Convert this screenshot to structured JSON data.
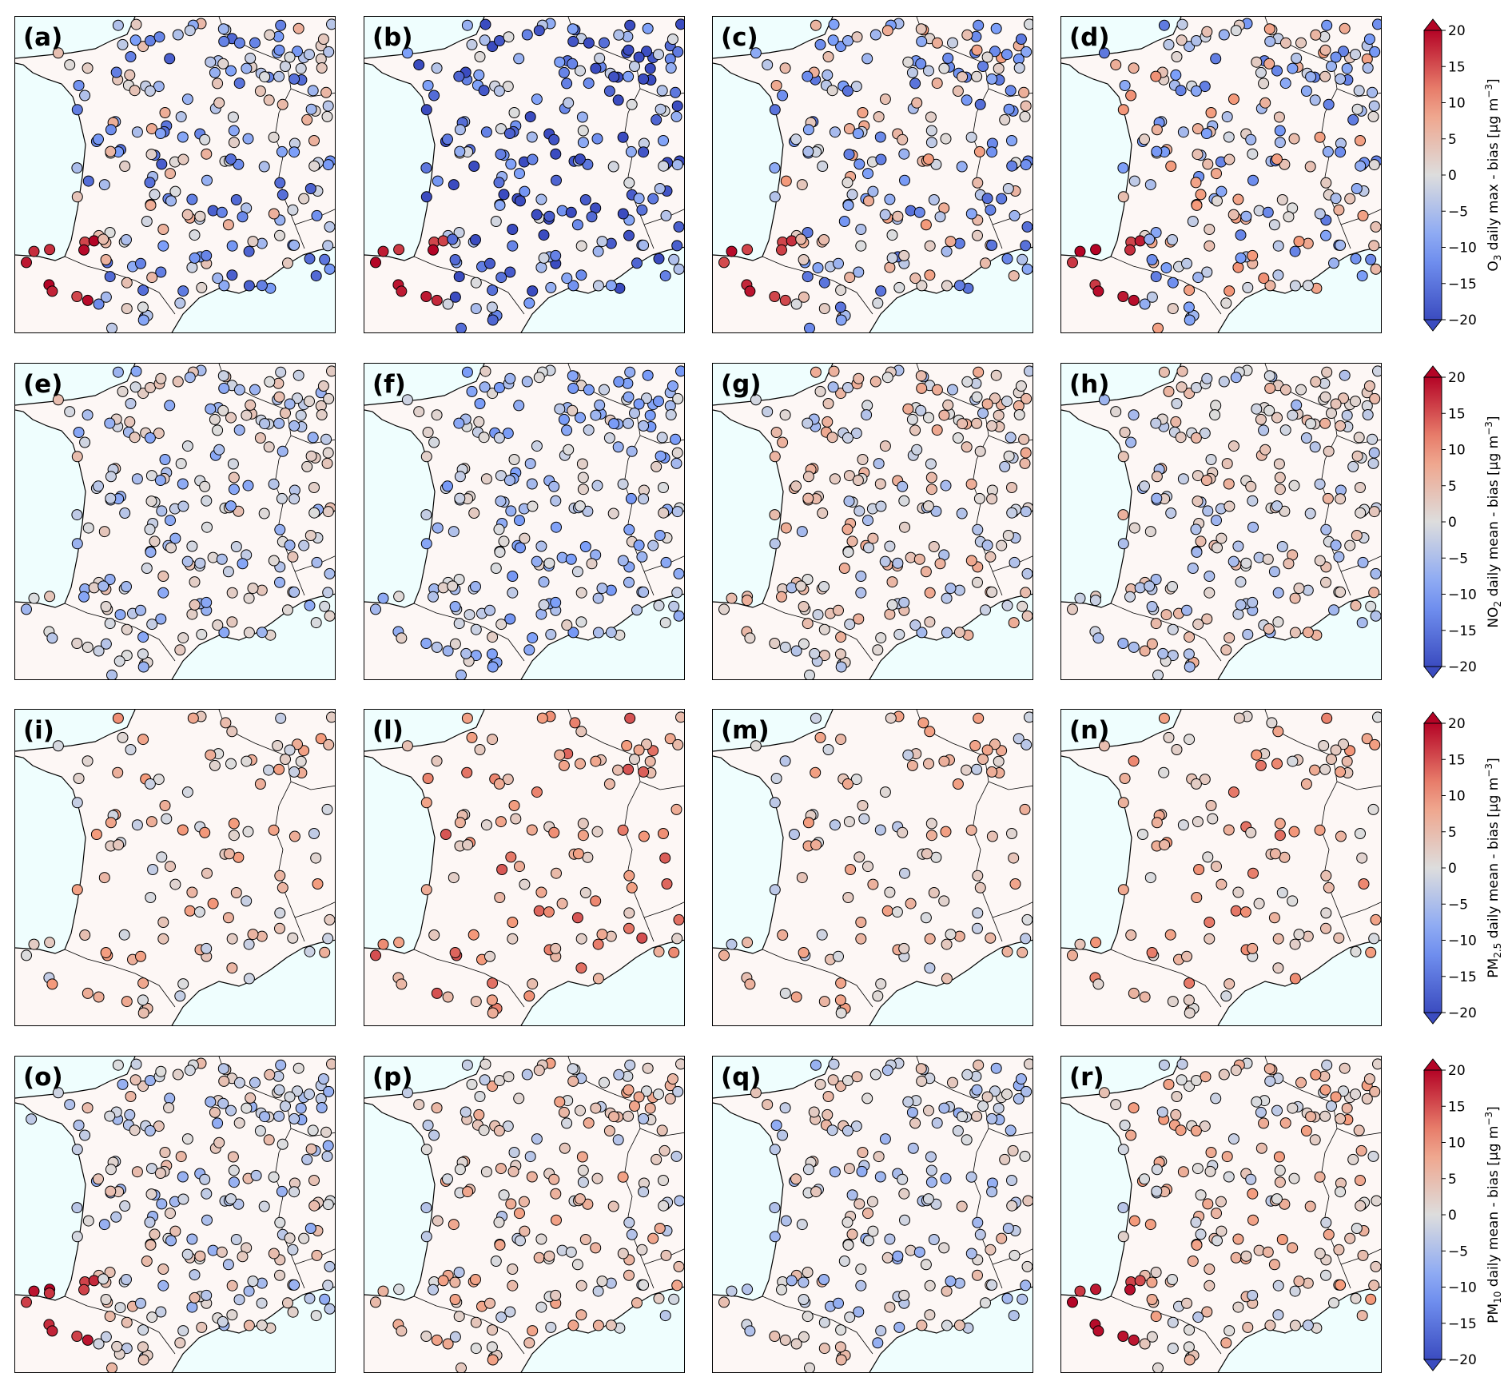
{
  "figure": {
    "panel_labels": [
      "(a)",
      "(b)",
      "(c)",
      "(d)",
      "(e)",
      "(f)",
      "(g)",
      "(h)",
      "(i)",
      "(l)",
      "(m)",
      "(n)",
      "(o)",
      "(p)",
      "(q)",
      "(r)"
    ],
    "rows": [
      {
        "colorbar_label": "O3 daily max - bias [µg m−3]",
        "colorbar_label_parts": {
          "prefix": "O",
          "sub": "3",
          "suffix": " daily max - bias [µg m",
          "sup": "−3",
          "end": "]"
        }
      },
      {
        "colorbar_label": "NO2 daily mean - bias [µg m−3]",
        "colorbar_label_parts": {
          "prefix": "NO",
          "sub": "2",
          "suffix": " daily mean - bias [µg m",
          "sup": "−3",
          "end": "]"
        }
      },
      {
        "colorbar_label": "PM2.5 daily mean - bias [µg m−3]",
        "colorbar_label_parts": {
          "prefix": "PM",
          "sub": "2.5",
          "suffix": " daily mean - bias [µg m",
          "sup": "−3",
          "end": "]"
        }
      },
      {
        "colorbar_label": "PM10 daily mean - bias [µg m−3]",
        "colorbar_label_parts": {
          "prefix": "PM",
          "sub": "10",
          "suffix": " daily mean - bias [µg m",
          "sup": "−3",
          "end": "]"
        }
      }
    ],
    "colorbar_ticks": [
      "20",
      "15",
      "10",
      "5",
      "0",
      "−5",
      "−10",
      "−15",
      "−20"
    ],
    "colorbar_range": [
      -20,
      20
    ],
    "colormap": "coolwarm",
    "colors": {
      "ocean": "#effefe",
      "land": "#fdf7f5",
      "cold": "#3b4cc0",
      "neutral": "#dddddd",
      "warm": "#b40426"
    }
  },
  "chart_data": {
    "type": "map-scatter",
    "region": "France",
    "value_units": "µg m−3",
    "value_range": [
      -20,
      20
    ],
    "panels_by_row": {
      "O3": [
        "(a)",
        "(b)",
        "(c)",
        "(d)"
      ],
      "NO2": [
        "(e)",
        "(f)",
        "(g)",
        "(h)"
      ],
      "PM2.5": [
        "(i)",
        "(l)",
        "(m)",
        "(n)"
      ],
      "PM10": [
        "(o)",
        "(p)",
        "(q)",
        "(r)"
      ]
    },
    "typical_bias": {
      "(a)": -5,
      "(b)": -12,
      "(c)": -3,
      "(d)": -2,
      "(e)": -2,
      "(f)": -4,
      "(g)": 1,
      "(h)": 0,
      "(i)": 4,
      "(l)": 8,
      "(m)": 3,
      "(n)": 6,
      "(o)": -1,
      "(p)": 2,
      "(q)": -1,
      "(r)": 3
    }
  }
}
